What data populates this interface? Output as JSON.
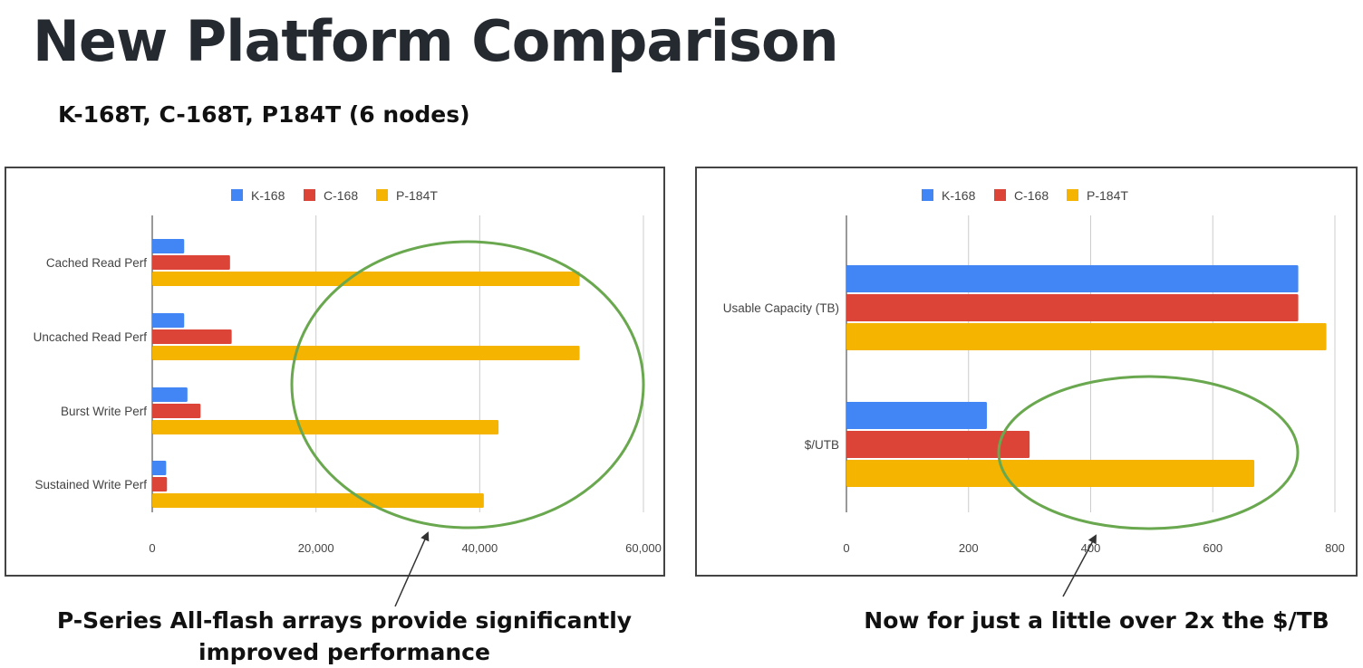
{
  "page": {
    "title": "New Platform Comparison",
    "subtitle": "K-168T, C-168T, P184T (6 nodes)",
    "callouts": {
      "left": "P-Series All-flash arrays provide significantly improved performance",
      "right": "Now for just a little over 2x the $/TB"
    },
    "annotation_color": "#6aa84f"
  },
  "chart_data": [
    {
      "type": "bar",
      "orientation": "horizontal",
      "categories": [
        "Cached Read Perf",
        "Uncached Read Perf",
        "Burst Write Perf",
        "Sustained Write Perf"
      ],
      "series": [
        {
          "name": "K-168",
          "color": "#4285f4",
          "values": [
            3900,
            3900,
            4300,
            1700
          ]
        },
        {
          "name": "C-168",
          "color": "#db4437",
          "values": [
            9500,
            9700,
            5900,
            1800
          ]
        },
        {
          "name": "P-184T",
          "color": "#f4b400",
          "values": [
            52200,
            52200,
            42300,
            40500
          ]
        }
      ],
      "xlim": [
        0,
        60000
      ],
      "xticks": [
        0,
        20000,
        40000,
        60000
      ],
      "xtick_labels": [
        "0",
        "20,000",
        "40,000",
        "60,000"
      ],
      "legend": "top",
      "grid": true
    },
    {
      "type": "bar",
      "orientation": "horizontal",
      "categories": [
        "Usable Capacity (TB)",
        "$/UTB"
      ],
      "series": [
        {
          "name": "K-168",
          "color": "#4285f4",
          "values": [
            740,
            230
          ]
        },
        {
          "name": "C-168",
          "color": "#db4437",
          "values": [
            740,
            300
          ]
        },
        {
          "name": "P-184T",
          "color": "#f4b400",
          "values": [
            786,
            668
          ]
        }
      ],
      "xlim": [
        0,
        800
      ],
      "xticks": [
        0,
        200,
        400,
        600,
        800
      ],
      "xtick_labels": [
        "0",
        "200",
        "400",
        "600",
        "800"
      ],
      "legend": "top",
      "grid": true
    }
  ]
}
